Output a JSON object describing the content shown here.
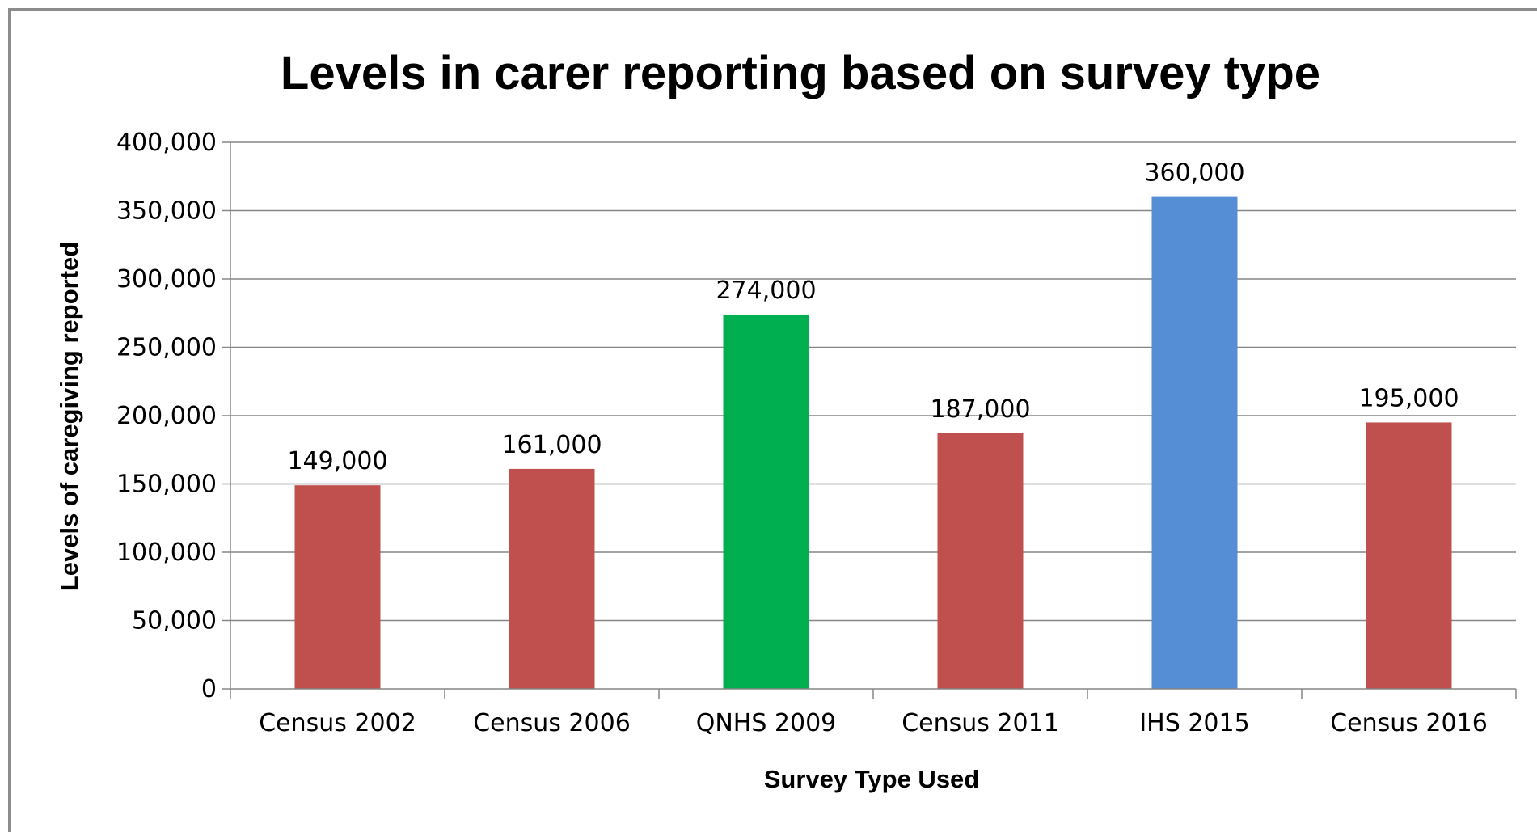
{
  "chart_data": {
    "type": "bar",
    "title": "Levels in carer reporting based on survey type",
    "xlabel": "Survey Type Used",
    "ylabel": "Levels of caregiving reported",
    "categories": [
      "Census 2002",
      "Census 2006",
      "QNHS 2009",
      "Census 2011",
      "IHS 2015",
      "Census 2016"
    ],
    "values": [
      149000,
      161000,
      274000,
      187000,
      360000,
      195000
    ],
    "value_labels": [
      "149,000",
      "161,000",
      "274,000",
      "187,000",
      "360,000",
      "195,000"
    ],
    "bar_colors": [
      "#c0504d",
      "#c0504d",
      "#00b050",
      "#c0504d",
      "#558ed5",
      "#c0504d"
    ],
    "ylim": [
      0,
      400000
    ],
    "yticks": [
      0,
      50000,
      100000,
      150000,
      200000,
      250000,
      300000,
      350000,
      400000
    ],
    "ytick_labels": [
      "0",
      "50,000",
      "100,000",
      "150,000",
      "200,000",
      "250,000",
      "300,000",
      "350,000",
      "400,000"
    ],
    "grid": true,
    "legend": "none"
  }
}
